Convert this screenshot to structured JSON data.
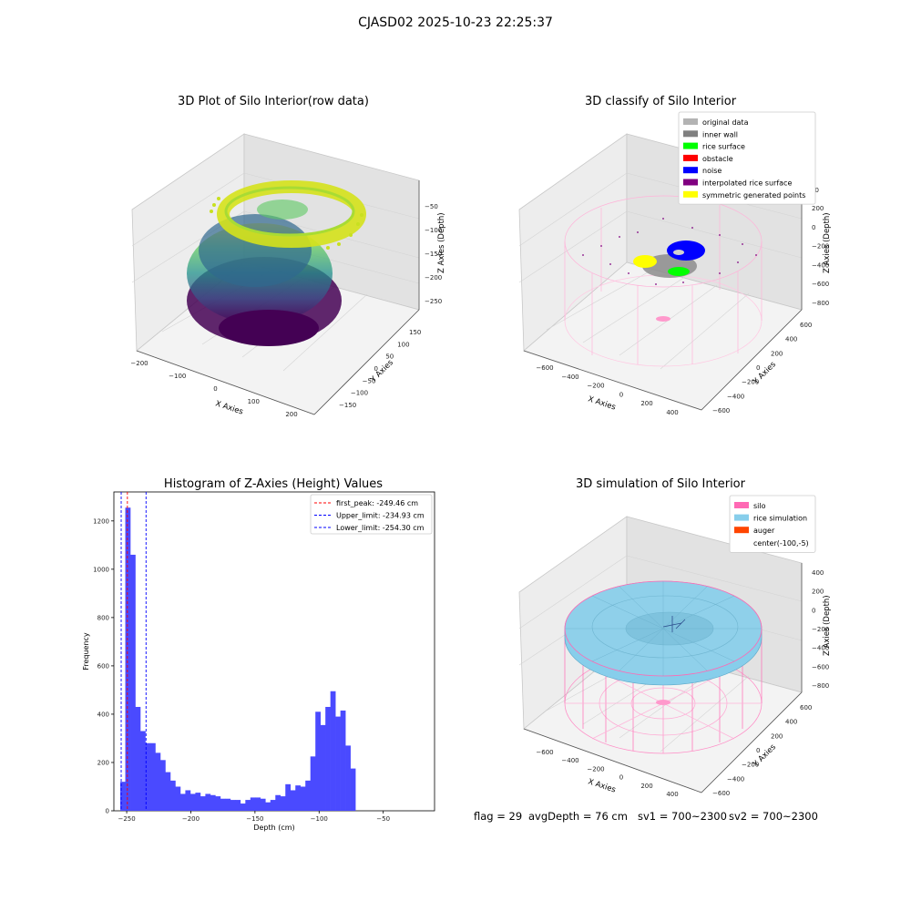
{
  "suptitle": "CJASD02 2025-10-23 22:25:37",
  "status": {
    "flag": "flag = 29",
    "avg_depth": "avgDepth = 76 cm",
    "sv1": "sv1 = 700~2300",
    "sv2": "sv2 = 700~2300"
  },
  "chart_data": [
    {
      "type": "scatter",
      "title": "3D Plot of Silo Interior(row data)",
      "xlabel": "X Axies",
      "ylabel": "Y Axies",
      "zlabel": "Z Axies (Depth)",
      "x_ticks": [
        "−200",
        "−100",
        "0",
        "100",
        "200"
      ],
      "y_ticks": [
        "−150",
        "−100",
        "−50",
        "0",
        "50",
        "100",
        "150"
      ],
      "z_ticks": [
        "−50",
        "−100",
        "−150",
        "−200",
        "−250"
      ],
      "colormap": "viridis"
    },
    {
      "type": "scatter",
      "title": "3D classify of Silo Interior",
      "xlabel": "X Axies",
      "ylabel": "Y Axies",
      "zlabel": "Z Axies (Depth)",
      "x_ticks": [
        "−600",
        "−400",
        "−200",
        "0",
        "200",
        "400"
      ],
      "y_ticks": [
        "−600",
        "−400",
        "−200",
        "0",
        "200",
        "400",
        "600"
      ],
      "z_ticks": [
        "200",
        "0",
        "−200",
        "−400",
        "−600",
        "−800"
      ],
      "z_partial_tick": "00",
      "legend": [
        {
          "label": "original data",
          "color": "#b3b3b3"
        },
        {
          "label": "inner wall",
          "color": "#808080"
        },
        {
          "label": "rice surface",
          "color": "#00ff00"
        },
        {
          "label": "obstacle",
          "color": "#ff0000"
        },
        {
          "label": "noise",
          "color": "#0000ff"
        },
        {
          "label": "interpolated rice surface",
          "color": "#800080"
        },
        {
          "label": "symmetric generated points",
          "color": "#ffff00"
        }
      ]
    },
    {
      "type": "bar",
      "title": "Histogram of Z-Axies (Height) Values",
      "xlabel": "Depth (cm)",
      "ylabel": "Frequency",
      "xlim": [
        -260,
        -10
      ],
      "ylim": [
        0,
        1320
      ],
      "x_ticks": [
        -250,
        -200,
        -150,
        -100,
        -50
      ],
      "x_tick_labels": [
        "−250",
        "−200",
        "−150",
        "−100",
        "−50"
      ],
      "y_ticks": [
        0,
        200,
        400,
        600,
        800,
        1000,
        1200
      ],
      "bar_color": "#4a4aff",
      "bin_start": -255,
      "bin_width": 3.9,
      "values": [
        120,
        1255,
        1060,
        430,
        330,
        280,
        280,
        240,
        210,
        160,
        125,
        100,
        70,
        85,
        70,
        75,
        60,
        70,
        65,
        60,
        50,
        50,
        45,
        45,
        30,
        45,
        55,
        55,
        50,
        35,
        45,
        65,
        60,
        110,
        85,
        105,
        100,
        125,
        225,
        410,
        355,
        430,
        495,
        390,
        415,
        270,
        175
      ],
      "vlines": [
        {
          "label": "first_peak: -249.46 cm",
          "x": -249.46,
          "color": "#ff0000"
        },
        {
          "label": "Upper_limit: -234.93 cm",
          "x": -234.93,
          "color": "#0000ff"
        },
        {
          "label": "Lower_limit: -254.30 cm",
          "x": -254.3,
          "color": "#0000ff"
        }
      ]
    },
    {
      "type": "area",
      "title": "3D simulation of Silo Interior",
      "xlabel": "X Axies",
      "ylabel": "Y Axies",
      "zlabel": "Z Axies (Depth)",
      "x_ticks": [
        "−600",
        "−400",
        "−200",
        "0",
        "200",
        "400"
      ],
      "y_ticks": [
        "−600",
        "−400",
        "−200",
        "0",
        "200",
        "400",
        "600"
      ],
      "z_ticks": [
        "400",
        "200",
        "0",
        "−200",
        "−400",
        "−600",
        "−800"
      ],
      "legend": [
        {
          "label": "silo",
          "color": "#ff69b4"
        },
        {
          "label": "rice simulation",
          "color": "#87ceeb"
        },
        {
          "label": "auger",
          "color": "#ff4500"
        },
        {
          "label": "center(-100,-5)",
          "color": "none"
        }
      ]
    }
  ]
}
